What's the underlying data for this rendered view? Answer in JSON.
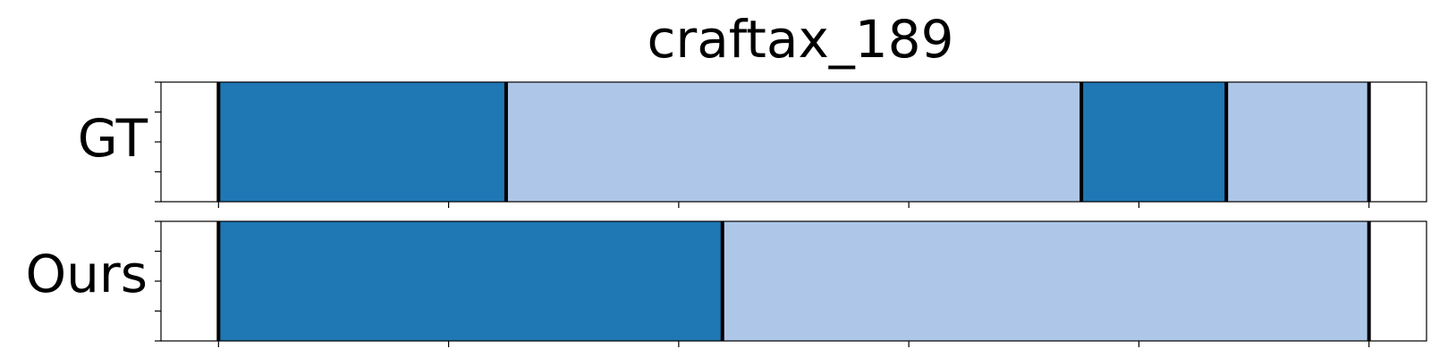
{
  "chart_data": {
    "type": "bar",
    "title": "craftax_189",
    "x_range": [
      -25,
      525
    ],
    "x_ticks": [
      0,
      100,
      200,
      300,
      400,
      500
    ],
    "colors": {
      "dark": "#1f77b4",
      "light": "#aec7e8",
      "boundary": "#000000"
    },
    "series": [
      {
        "name": "GT",
        "segments": [
          {
            "start": 0,
            "end": 125,
            "color": "dark"
          },
          {
            "start": 125,
            "end": 375,
            "color": "light"
          },
          {
            "start": 375,
            "end": 438,
            "color": "dark"
          },
          {
            "start": 438,
            "end": 500,
            "color": "light"
          }
        ]
      },
      {
        "name": "Ours",
        "segments": [
          {
            "start": 0,
            "end": 219,
            "color": "dark"
          },
          {
            "start": 219,
            "end": 500,
            "color": "light"
          }
        ]
      }
    ]
  }
}
